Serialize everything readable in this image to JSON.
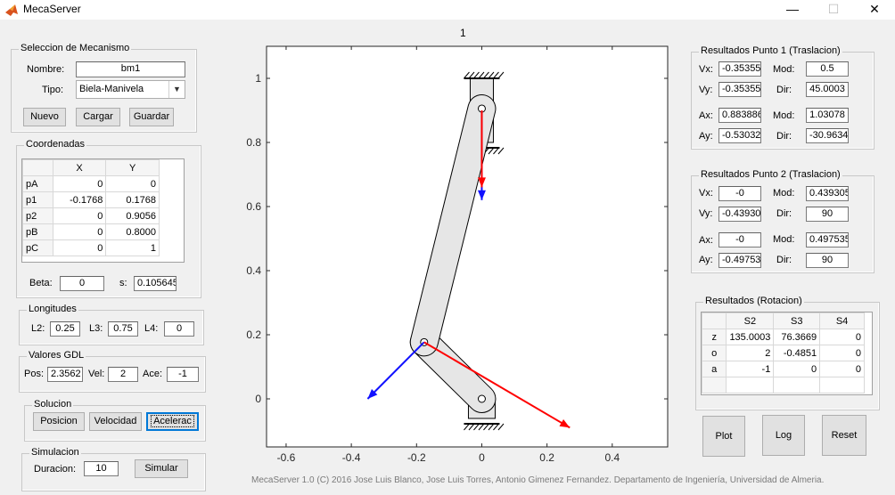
{
  "window": {
    "title": "MecaServer",
    "minimize": "—",
    "maximize": "☐",
    "close": "✕"
  },
  "mechanism_select": {
    "legend": "Seleccion de Mecanismo",
    "name_label": "Nombre:",
    "name_value": "bm1",
    "type_label": "Tipo:",
    "type_value": "Biela-Manivela",
    "new_label": "Nuevo",
    "load_label": "Cargar",
    "save_label": "Guardar"
  },
  "coordinates": {
    "legend": "Coordenadas",
    "columns": [
      "",
      "X",
      "Y"
    ],
    "rows": [
      {
        "name": "pA",
        "x": "0",
        "y": "0"
      },
      {
        "name": "p1",
        "x": "-0.1768",
        "y": "0.1768"
      },
      {
        "name": "p2",
        "x": "0",
        "y": "0.9056"
      },
      {
        "name": "pB",
        "x": "0",
        "y": "0.8000"
      },
      {
        "name": "pC",
        "x": "0",
        "y": "1"
      }
    ],
    "beta_label": "Beta:",
    "beta_value": "0",
    "s_label": "s:",
    "s_value": "0.105645"
  },
  "lengths": {
    "legend": "Longitudes",
    "l2_label": "L2:",
    "l2_value": "0.25",
    "l3_label": "L3:",
    "l3_value": "0.75",
    "l4_label": "L4:",
    "l4_value": "0"
  },
  "dof": {
    "legend": "Valores GDL",
    "pos_label": "Pos:",
    "pos_value": "2.3562",
    "vel_label": "Vel:",
    "vel_value": "2",
    "ace_label": "Ace:",
    "ace_value": "-1"
  },
  "solution": {
    "legend": "Solucion",
    "position_label": "Posicion",
    "velocity_label": "Velocidad",
    "acceleration_label": "Acelerac"
  },
  "simulation": {
    "legend": "Simulacion",
    "duration_label": "Duracion:",
    "duration_value": "10",
    "simulate_label": "Simular"
  },
  "figure": {
    "title": "1",
    "x_ticks": [
      "-0.6",
      "-0.4",
      "-0.2",
      "0",
      "0.2",
      "0.4"
    ],
    "y_ticks": [
      "0",
      "0.2",
      "0.4",
      "0.6",
      "0.8",
      "1"
    ]
  },
  "chart_data": {
    "type": "scatter",
    "title": "1",
    "xlim": [
      -0.66,
      0.57
    ],
    "ylim": [
      -0.15,
      1.1
    ],
    "points": {
      "pA": [
        0,
        0
      ],
      "p1": [
        -0.1768,
        0.1768
      ],
      "pB": [
        0,
        0.8
      ],
      "p2": [
        0,
        0.9056
      ],
      "pC": [
        0,
        1
      ]
    },
    "vectors": [
      {
        "from": [
          0,
          0.9
        ],
        "to": [
          0,
          0.62
        ],
        "color": "#1010ff"
      },
      {
        "from": [
          0,
          0.9
        ],
        "to": [
          0,
          0.66
        ],
        "color": "#ff0000"
      },
      {
        "from": [
          -0.1768,
          0.1768
        ],
        "to": [
          -0.35,
          0.0
        ],
        "color": "#1010ff"
      },
      {
        "from": [
          -0.1768,
          0.1768
        ],
        "to": [
          0.27,
          -0.09
        ],
        "color": "#ff0000"
      }
    ]
  },
  "point1": {
    "legend": "Resultados Punto 1 (Traslacion)",
    "vx_label": "Vx:",
    "vx_value": "-0.35355",
    "vy_label": "Vy:",
    "vy_value": "-0.35355",
    "vmod_label": "Mod:",
    "vmod_value": "0.5",
    "vdir_label": "Dir:",
    "vdir_value": "45.0003",
    "ax_label": "Ax:",
    "ax_value": "0.883886",
    "ay_label": "Ay:",
    "ay_value": "-0.53032",
    "amod_label": "Mod:",
    "amod_value": "1.03078",
    "adir_label": "Dir:",
    "adir_value": "-30.9634"
  },
  "point2": {
    "legend": "Resultados Punto 2 (Traslacion)",
    "vx_label": "Vx:",
    "vx_value": "-0",
    "vy_label": "Vy:",
    "vy_value": "-0.43930",
    "vmod_label": "Mod:",
    "vmod_value": "0.439305",
    "vdir_label": "Dir:",
    "vdir_value": "90",
    "ax_label": "Ax:",
    "ax_value": "-0",
    "ay_label": "Ay:",
    "ay_value": "-0.49753",
    "amod_label": "Mod:",
    "amod_value": "0.497535",
    "adir_label": "Dir:",
    "adir_value": "90"
  },
  "rotation": {
    "legend": "Resultados (Rotacion)",
    "columns": [
      "",
      "S2",
      "S3",
      "S4"
    ],
    "rows": [
      {
        "name": "z",
        "s2": "135.0003",
        "s3": "76.3669",
        "s4": "0"
      },
      {
        "name": "o",
        "s2": "2",
        "s3": "-0.4851",
        "s4": "0"
      },
      {
        "name": "a",
        "s2": "-1",
        "s3": "0",
        "s4": "0"
      }
    ]
  },
  "actions": {
    "plot_label": "Plot",
    "log_label": "Log",
    "reset_label": "Reset"
  },
  "footer": "MecaServer 1.0 (C) 2016 Jose Luis Blanco, Jose Luis Torres, Antonio Gimenez Fernandez.  Departamento de Ingeniería, Universidad de Almeria."
}
